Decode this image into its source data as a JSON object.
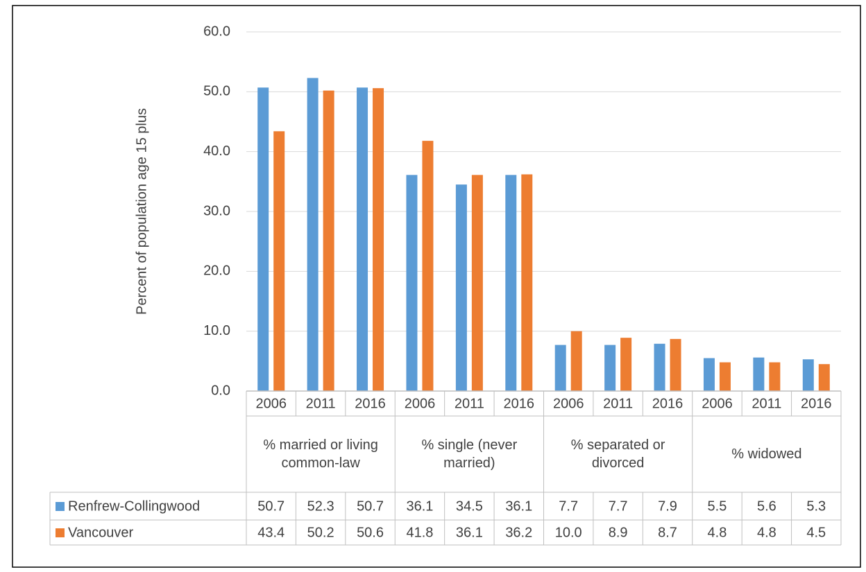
{
  "chart_data": {
    "type": "bar",
    "y_label": "Percent of population age 15 plus",
    "categories": [
      "2006",
      "2011",
      "2016",
      "2006",
      "2011",
      "2016",
      "2006",
      "2011",
      "2016",
      "2006",
      "2011",
      "2016"
    ],
    "groups": [
      "% married or living common-law",
      "% single (never married)",
      "% separated or divorced",
      "% widowed"
    ],
    "series": [
      {
        "name": "Renfrew-Collingwood",
        "color": "#5b9bd5",
        "values": [
          50.7,
          52.3,
          50.7,
          36.1,
          34.5,
          36.1,
          7.7,
          7.7,
          7.9,
          5.5,
          5.6,
          5.3
        ],
        "value_labels": [
          "50.7",
          "52.3",
          "50.7",
          "36.1",
          "34.5",
          "36.1",
          "7.7",
          "7.7",
          "7.9",
          "5.5",
          "5.6",
          "5.3"
        ]
      },
      {
        "name": "Vancouver",
        "color": "#ed7d31",
        "values": [
          43.4,
          50.2,
          50.6,
          41.8,
          36.1,
          36.2,
          10.0,
          8.9,
          8.7,
          4.8,
          4.8,
          4.5
        ],
        "value_labels": [
          "43.4",
          "50.2",
          "50.6",
          "41.8",
          "36.1",
          "36.2",
          "10.0",
          "8.9",
          "8.7",
          "4.8",
          "4.8",
          "4.5"
        ]
      }
    ],
    "ylim": [
      0,
      60
    ],
    "yticks": [
      {
        "value": 0,
        "label": "0.0"
      },
      {
        "value": 10,
        "label": "10.0"
      },
      {
        "value": 20,
        "label": "20.0"
      },
      {
        "value": 30,
        "label": "30.0"
      },
      {
        "value": 40,
        "label": "40.0"
      },
      {
        "value": 50,
        "label": "50.0"
      },
      {
        "value": 60,
        "label": "60.0"
      }
    ],
    "grid": true,
    "legend": "table"
  }
}
